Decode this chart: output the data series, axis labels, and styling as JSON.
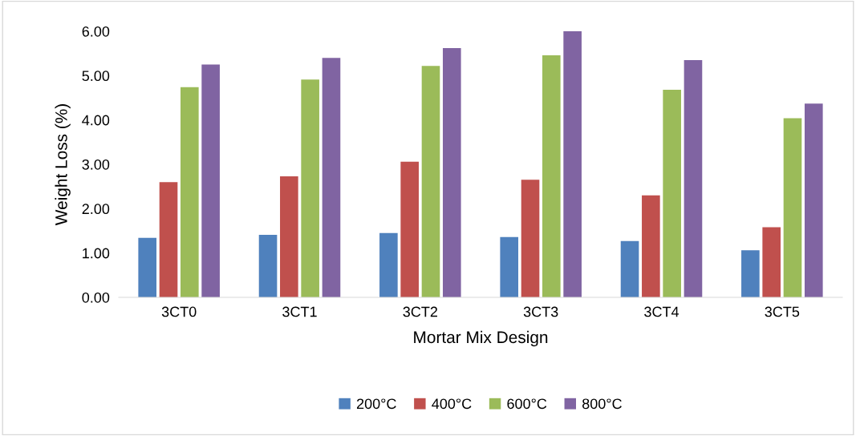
{
  "chart_data": {
    "type": "bar",
    "xlabel": "Mortar Mix Design",
    "ylabel": "Weight Loss (%)",
    "categories": [
      "3CT0",
      "3CT1",
      "3CT2",
      "3CT3",
      "3CT4",
      "3CT5"
    ],
    "series": [
      {
        "name": "200°C",
        "color": "#4f81bd",
        "values": [
          1.34,
          1.41,
          1.45,
          1.36,
          1.27,
          1.06
        ]
      },
      {
        "name": "400°C",
        "color": "#c0504d",
        "values": [
          2.6,
          2.73,
          3.06,
          2.65,
          2.3,
          1.58
        ]
      },
      {
        "name": "600°C",
        "color": "#9bbb59",
        "values": [
          4.74,
          4.91,
          5.22,
          5.46,
          4.68,
          4.04
        ]
      },
      {
        "name": "800°C",
        "color": "#8064a2",
        "values": [
          5.25,
          5.4,
          5.62,
          6.0,
          5.35,
          4.37
        ]
      }
    ],
    "ylim": [
      0,
      6
    ],
    "yticks": [
      {
        "value": 0,
        "label": "0.00"
      },
      {
        "value": 1,
        "label": "1.00"
      },
      {
        "value": 2,
        "label": "2.00"
      },
      {
        "value": 3,
        "label": "3.00"
      },
      {
        "value": 4,
        "label": "4.00"
      },
      {
        "value": 5,
        "label": "5.00"
      },
      {
        "value": 6,
        "label": "6.00"
      }
    ],
    "grid": false,
    "legend": "bottom"
  }
}
